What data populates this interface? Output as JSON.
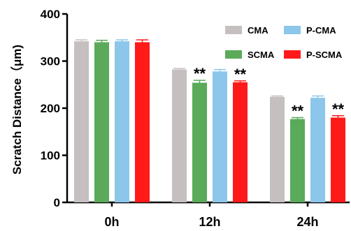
{
  "chart_data": {
    "type": "bar",
    "ylabel": "Scratch Distance（μm)",
    "xlabel": "",
    "title": "",
    "categories": [
      "0h",
      "12h",
      "24h"
    ],
    "ylim": [
      0,
      400
    ],
    "yticks": [
      0,
      100,
      200,
      300,
      400
    ],
    "legend_position": "top-right",
    "series": [
      {
        "name": "CMA",
        "color": "#c6bfbf",
        "values": [
          342,
          282,
          224
        ],
        "errors": [
          3,
          2,
          2
        ],
        "annotations": [
          "",
          "",
          ""
        ]
      },
      {
        "name": "SCMA",
        "color": "#5aaa5a",
        "values": [
          340,
          254,
          177
        ],
        "errors": [
          4,
          5,
          3
        ],
        "annotations": [
          "",
          "**",
          "**"
        ]
      },
      {
        "name": "P-CMA",
        "color": "#8cc6ea",
        "values": [
          342,
          278,
          222
        ],
        "errors": [
          3,
          4,
          4
        ],
        "annotations": [
          "",
          "",
          ""
        ]
      },
      {
        "name": "P-SCMA",
        "color": "#ff1a1a",
        "values": [
          340,
          255,
          180
        ],
        "errors": [
          5,
          3,
          4
        ],
        "annotations": [
          "",
          "**",
          "**"
        ]
      }
    ]
  }
}
